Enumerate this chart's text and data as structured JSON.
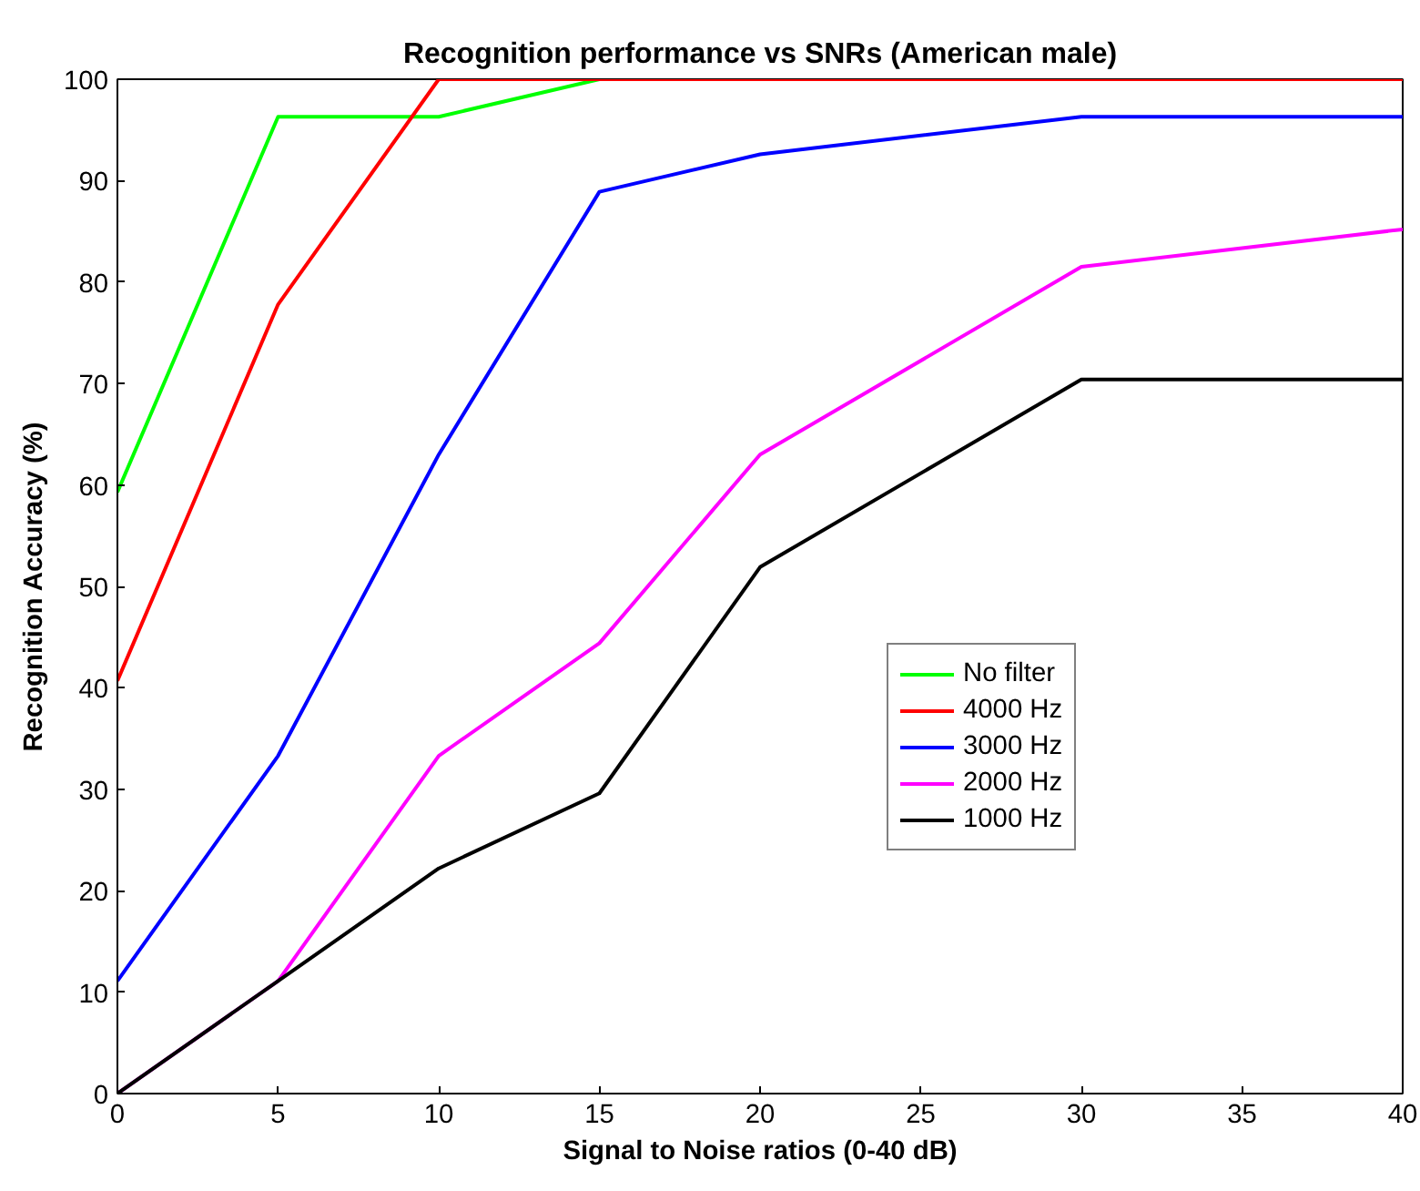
{
  "chart_data": {
    "type": "line",
    "title": "Recognition performance vs SNRs (American male)",
    "xlabel": "Signal to Noise ratios (0-40 dB)",
    "ylabel": "Recognition Accuracy (%)",
    "x": [
      0,
      5,
      10,
      15,
      20,
      30,
      40
    ],
    "series": [
      {
        "name": "No filter",
        "color": "#00ff00",
        "values": [
          59.3,
          96.3,
          96.3,
          100,
          null,
          null,
          null
        ]
      },
      {
        "name": "4000 Hz",
        "color": "#ff0000",
        "values": [
          40.7,
          77.8,
          100,
          100,
          100,
          100,
          100
        ]
      },
      {
        "name": "3000 Hz",
        "color": "#0000ff",
        "values": [
          11.1,
          33.3,
          63,
          88.9,
          92.6,
          96.3,
          96.3
        ]
      },
      {
        "name": "2000 Hz",
        "color": "#ff00ff",
        "values": [
          0,
          11.1,
          33.3,
          44.4,
          63,
          81.5,
          85.2
        ]
      },
      {
        "name": "1000 Hz",
        "color": "#000000",
        "values": [
          0,
          11.1,
          22.2,
          29.6,
          51.9,
          70.4,
          70.4
        ]
      }
    ],
    "xlim": [
      0,
      40
    ],
    "ylim": [
      0,
      100
    ],
    "xticks": [
      0,
      5,
      10,
      15,
      20,
      25,
      30,
      35,
      40
    ],
    "yticks": [
      0,
      10,
      20,
      30,
      40,
      50,
      60,
      70,
      80,
      90,
      100
    ],
    "grid": false,
    "legend": "center right",
    "marker": "none",
    "line_style": "solid"
  }
}
